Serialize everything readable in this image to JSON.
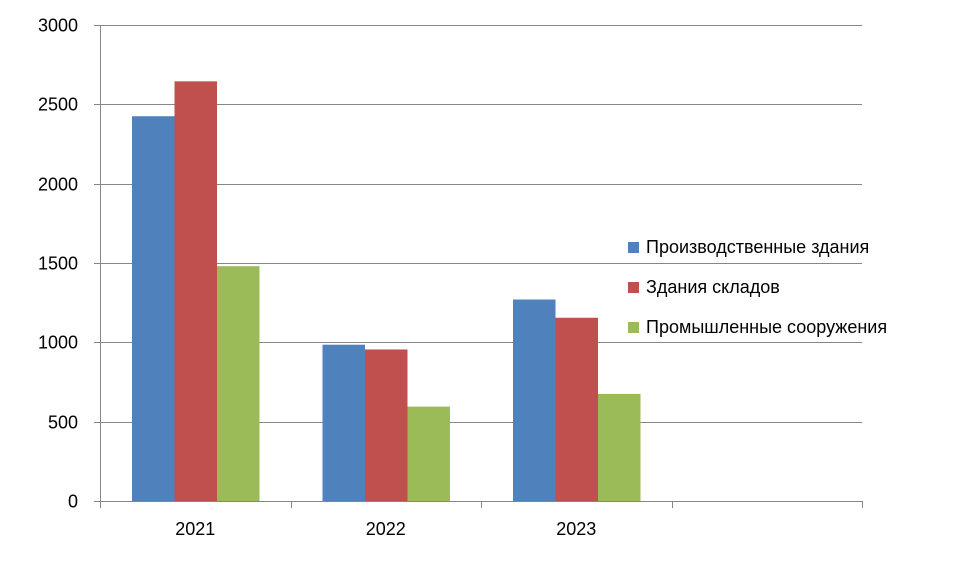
{
  "chart_data": {
    "type": "bar",
    "categories": [
      "2021",
      "2022",
      "2023",
      ""
    ],
    "series": [
      {
        "name": "Производственные здания",
        "values": [
          2425,
          985,
          1270,
          null
        ],
        "color": "#4F81BD"
      },
      {
        "name": "Здания складов",
        "values": [
          2645,
          955,
          1155,
          null
        ],
        "color": "#C0504D"
      },
      {
        "name": "Промышленные сооружения",
        "values": [
          1480,
          595,
          675,
          null
        ],
        "color": "#9BBB59"
      }
    ],
    "ylim": [
      0,
      3000
    ],
    "yticks": [
      0,
      500,
      1000,
      1500,
      2000,
      2500,
      3000
    ],
    "grid": true,
    "legend_position": "right",
    "axis_color": "#868686",
    "grid_color": "#868686"
  }
}
